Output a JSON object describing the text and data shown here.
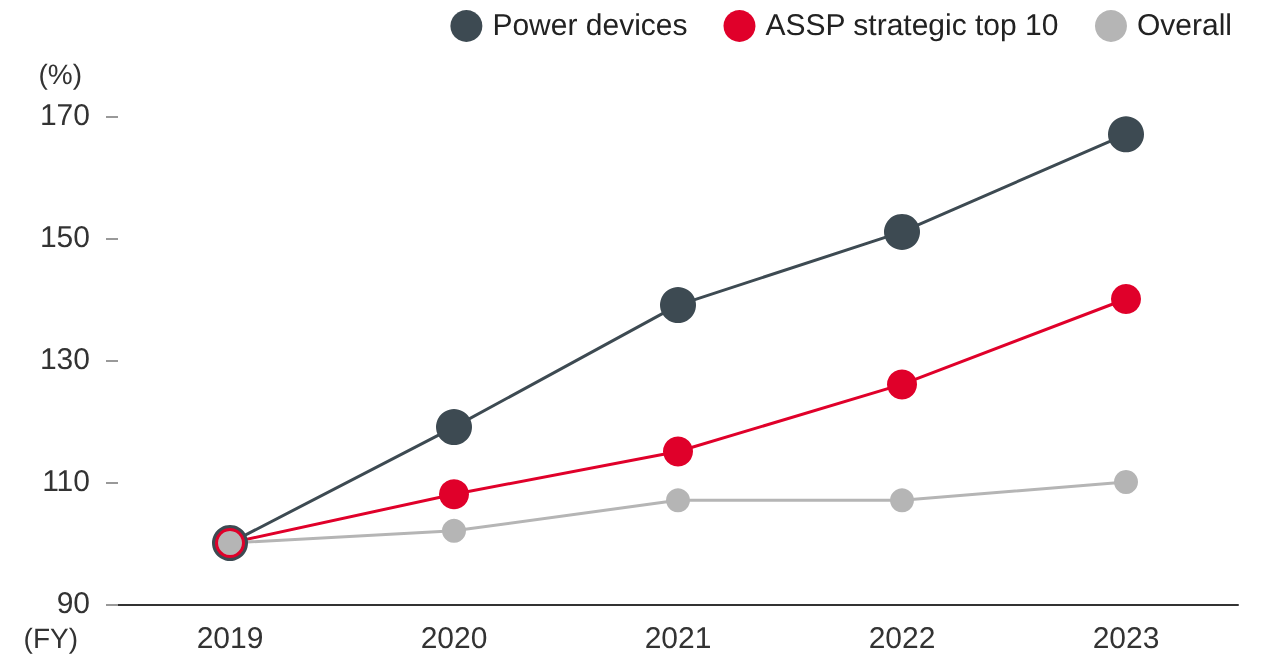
{
  "chart_data": {
    "type": "line",
    "xlabel": "(FY)",
    "ylabel": "(%)",
    "categories": [
      "2019",
      "2020",
      "2021",
      "2022",
      "2023"
    ],
    "series": [
      {
        "name": "Power devices",
        "color": "#3d4a52",
        "values": [
          100,
          119,
          139,
          151,
          167
        ]
      },
      {
        "name": "ASSP strategic top 10",
        "color": "#e0002a",
        "values": [
          100,
          108,
          115,
          126,
          140
        ]
      },
      {
        "name": "Overall",
        "color": "#b5b5b5",
        "values": [
          100,
          102,
          107,
          107,
          110
        ]
      }
    ],
    "ylim": [
      90,
      170
    ],
    "yticks": [
      90,
      110,
      130,
      150,
      170
    ],
    "grid": false,
    "legend": "top right",
    "marker": "circle",
    "line_style": "solid"
  }
}
